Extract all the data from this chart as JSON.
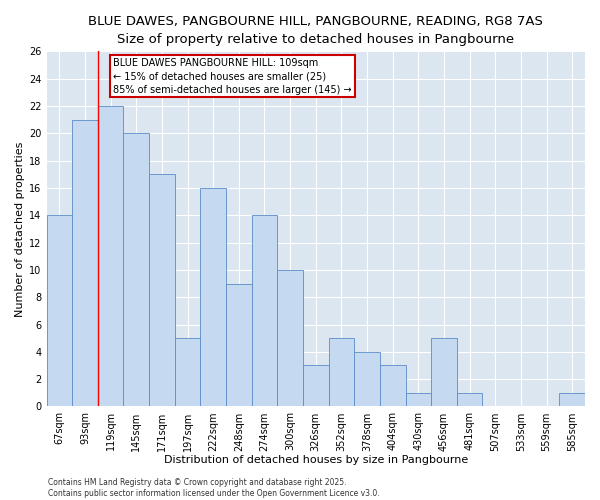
{
  "title1": "BLUE DAWES, PANGBOURNE HILL, PANGBOURNE, READING, RG8 7AS",
  "title2": "Size of property relative to detached houses in Pangbourne",
  "xlabel": "Distribution of detached houses by size in Pangbourne",
  "ylabel": "Number of detached properties",
  "categories": [
    "67sqm",
    "93sqm",
    "119sqm",
    "145sqm",
    "171sqm",
    "197sqm",
    "222sqm",
    "248sqm",
    "274sqm",
    "300sqm",
    "326sqm",
    "352sqm",
    "378sqm",
    "404sqm",
    "430sqm",
    "456sqm",
    "481sqm",
    "507sqm",
    "533sqm",
    "559sqm",
    "585sqm"
  ],
  "values": [
    14,
    21,
    22,
    20,
    17,
    5,
    16,
    9,
    14,
    10,
    3,
    5,
    4,
    3,
    1,
    5,
    1,
    0,
    0,
    0,
    1
  ],
  "bar_color": "#c5d9f1",
  "bar_edge_color": "#5b8cc8",
  "background_color": "#dce6f1",
  "fig_background": "#ffffff",
  "grid_color": "#ffffff",
  "red_line_x": 1.5,
  "annotation_text": "BLUE DAWES PANGBOURNE HILL: 109sqm\n← 15% of detached houses are smaller (25)\n85% of semi-detached houses are larger (145) →",
  "annotation_box_color": "#ffffff",
  "annotation_box_edge": "#cc0000",
  "ylim": [
    0,
    26
  ],
  "yticks": [
    0,
    2,
    4,
    6,
    8,
    10,
    12,
    14,
    16,
    18,
    20,
    22,
    24,
    26
  ],
  "footnote": "Contains HM Land Registry data © Crown copyright and database right 2025.\nContains public sector information licensed under the Open Government Licence v3.0.",
  "title_fontsize": 9.5,
  "subtitle_fontsize": 8.5,
  "tick_fontsize": 7,
  "label_fontsize": 8,
  "annotation_fontsize": 7
}
